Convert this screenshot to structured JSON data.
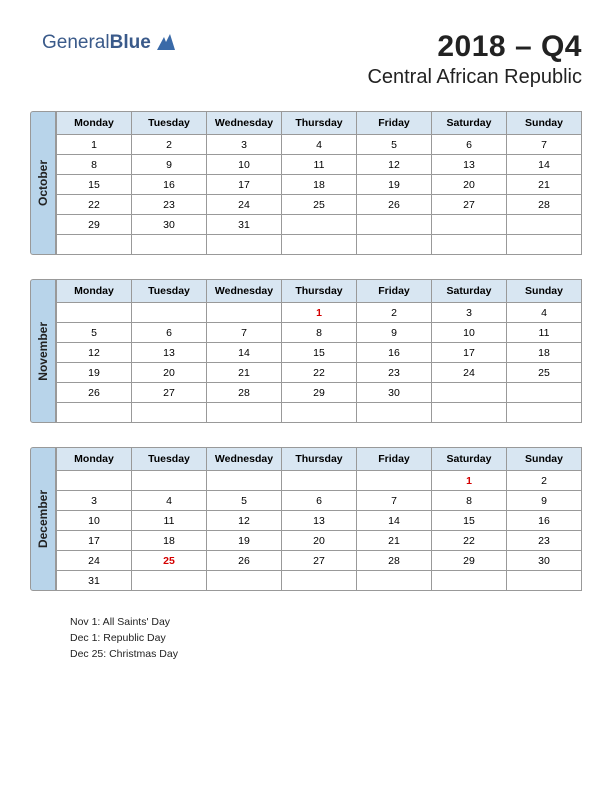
{
  "logo": {
    "text1": "General",
    "text2": "Blue"
  },
  "header": {
    "quarter": "2018 – Q4",
    "country": "Central African Republic"
  },
  "days": [
    "Monday",
    "Tuesday",
    "Wednesday",
    "Thursday",
    "Friday",
    "Saturday",
    "Sunday"
  ],
  "colors": {
    "tab_bg": "#b8d4ea",
    "header_bg": "#d8e6f2",
    "border": "#999999",
    "holiday": "#d40000",
    "logo": "#3a5a8a"
  },
  "months": [
    {
      "name": "October",
      "weeks": [
        [
          "1",
          "2",
          "3",
          "4",
          "5",
          "6",
          "7"
        ],
        [
          "8",
          "9",
          "10",
          "11",
          "12",
          "13",
          "14"
        ],
        [
          "15",
          "16",
          "17",
          "18",
          "19",
          "20",
          "21"
        ],
        [
          "22",
          "23",
          "24",
          "25",
          "26",
          "27",
          "28"
        ],
        [
          "29",
          "30",
          "31",
          "",
          "",
          "",
          ""
        ],
        [
          "",
          "",
          "",
          "",
          "",
          "",
          ""
        ]
      ],
      "holidays": []
    },
    {
      "name": "November",
      "weeks": [
        [
          "",
          "",
          "",
          "1",
          "2",
          "3",
          "4"
        ],
        [
          "5",
          "6",
          "7",
          "8",
          "9",
          "10",
          "11"
        ],
        [
          "12",
          "13",
          "14",
          "15",
          "16",
          "17",
          "18"
        ],
        [
          "19",
          "20",
          "21",
          "22",
          "23",
          "24",
          "25"
        ],
        [
          "26",
          "27",
          "28",
          "29",
          "30",
          "",
          ""
        ],
        [
          "",
          "",
          "",
          "",
          "",
          "",
          ""
        ]
      ],
      "holidays": [
        "1"
      ]
    },
    {
      "name": "December",
      "weeks": [
        [
          "",
          "",
          "",
          "",
          "",
          "1",
          "2"
        ],
        [
          "3",
          "4",
          "5",
          "6",
          "7",
          "8",
          "9"
        ],
        [
          "10",
          "11",
          "12",
          "13",
          "14",
          "15",
          "16"
        ],
        [
          "17",
          "18",
          "19",
          "20",
          "21",
          "22",
          "23"
        ],
        [
          "24",
          "25",
          "26",
          "27",
          "28",
          "29",
          "30"
        ],
        [
          "31",
          "",
          "",
          "",
          "",
          "",
          ""
        ]
      ],
      "holidays": [
        "1",
        "25"
      ]
    }
  ],
  "holiday_list": [
    "Nov 1: All Saints' Day",
    "Dec 1: Republic Day",
    "Dec 25: Christmas Day"
  ]
}
